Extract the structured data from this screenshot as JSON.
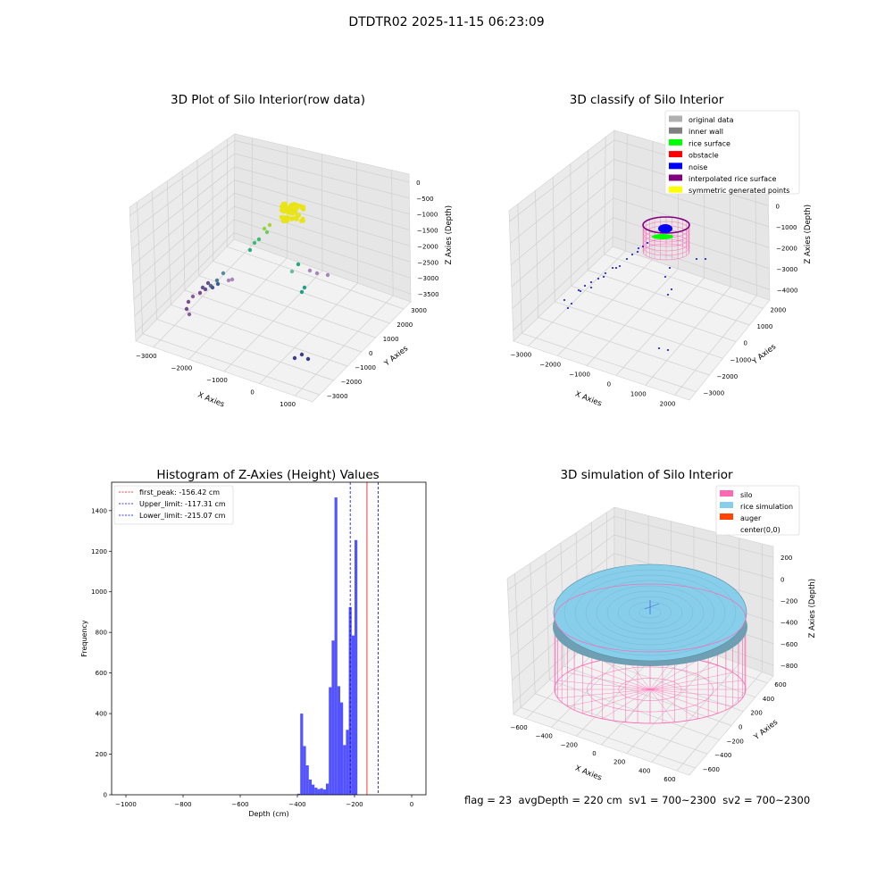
{
  "suptitle": "DTDTR02 2025-11-15 06:23:09",
  "footer": "flag = 23  avgDepth = 220 cm  sv1 = 700~2300  sv2 = 700~2300",
  "colors": {
    "original": "#b0b0b0",
    "inner_wall": "#808080",
    "rice_surface": "#00ff00",
    "obstacle": "#ff0000",
    "noise": "#0000ff",
    "interpolated": "#800080",
    "symmetric": "#ffff00",
    "silo": "#ff69b4",
    "rice_sim": "#87ceeb",
    "auger": "#ff4500",
    "hist_bar": "#4b4bff"
  },
  "chart_data": [
    {
      "type": "scatter",
      "projection": "3d",
      "title": "3D Plot of Silo Interior(row data)",
      "xlabel": "X Axies",
      "ylabel": "Y Axies",
      "zlabel": "Z Axies (Depth)",
      "xticks": [
        "−3000",
        "−2000",
        "−1000",
        "0",
        "1000"
      ],
      "yticks": [
        "3000",
        "2000",
        "1000",
        "0",
        "−1000",
        "−2000",
        "−3000"
      ],
      "zticks": [
        "0",
        "−500",
        "−1000",
        "−1500",
        "−2000",
        "−2500",
        "−3000",
        "−3500"
      ],
      "colormap": "viridis by depth"
    },
    {
      "type": "scatter",
      "projection": "3d",
      "title": "3D classify of Silo Interior",
      "xlabel": "X Axies",
      "ylabel": "Y Axies",
      "zlabel": "Z Axies (Depth)",
      "xticks": [
        "−3000",
        "−2000",
        "−1000",
        "0",
        "1000",
        "2000"
      ],
      "yticks": [
        "2000",
        "1000",
        "0",
        "−1000",
        "−2000",
        "−3000"
      ],
      "zticks": [
        "1000",
        "0",
        "−1000",
        "−2000",
        "−3000",
        "−4000"
      ],
      "legend": [
        "original data",
        "inner wall",
        "rice surface",
        "obstacle",
        "noise",
        "interpolated rice surface",
        "symmetric generated points"
      ],
      "legend_loc": "upper right"
    },
    {
      "type": "bar",
      "title": "Histogram of Z-Axies (Height) Values",
      "xlabel": "Depth (cm)",
      "ylabel": "Frequency",
      "xlim": [
        -1050,
        50
      ],
      "ylim": [
        0,
        1540
      ],
      "xticks": [
        "−1000",
        "−800",
        "−600",
        "−400",
        "−200",
        "0"
      ],
      "yticks": [
        "0",
        "200",
        "400",
        "600",
        "800",
        "1000",
        "1200",
        "1400"
      ],
      "bin_width": 10,
      "bin_edges_start": [
        -400,
        -390,
        -380,
        -370,
        -360,
        -350,
        -340,
        -330,
        -320,
        -310,
        -300,
        -290,
        -280,
        -270,
        -260,
        -250,
        -240,
        -230,
        -220,
        -210,
        -200,
        -190,
        -180,
        -170,
        -160,
        -150,
        -140,
        -130,
        -120,
        -110,
        -100,
        -90,
        -80,
        -70,
        -60,
        -50,
        -40,
        -30,
        -20,
        -10
      ],
      "values": [
        5,
        400,
        240,
        145,
        75,
        50,
        35,
        28,
        32,
        26,
        55,
        530,
        760,
        1465,
        535,
        455,
        245,
        320,
        925,
        785,
        1255
      ],
      "bins_used_start": [
        -400,
        -390,
        -380,
        -370,
        -360,
        -350,
        -340,
        -330,
        -320,
        -310,
        -300,
        -290,
        -280,
        -270,
        -260,
        -250,
        -240,
        -230,
        -220,
        -210,
        -200
      ],
      "lines": [
        {
          "label": "first_peak: -156.42 cm",
          "x": -156.42,
          "color": "#ff0000"
        },
        {
          "label": "Upper_limit: -117.31 cm",
          "x": -117.31,
          "color": "#0000ff"
        },
        {
          "label": "Lower_limit: -215.07 cm",
          "x": -215.07,
          "color": "#0000ff"
        }
      ],
      "legend_loc": "upper left"
    },
    {
      "type": "surface",
      "projection": "3d",
      "title": "3D simulation of Silo Interior",
      "xlabel": "X Axies",
      "ylabel": "Y Axies",
      "zlabel": "Z Axies (Depth)",
      "xticks": [
        "−600",
        "−400",
        "−200",
        "0",
        "200",
        "400",
        "600"
      ],
      "yticks": [
        "600",
        "400",
        "200",
        "0",
        "−200",
        "−400",
        "−600"
      ],
      "zticks": [
        "200",
        "0",
        "−200",
        "−400",
        "−600",
        "−800"
      ],
      "legend": [
        "silo",
        "rice simulation",
        "auger",
        "center(0,0)"
      ],
      "legend_loc": "upper right"
    }
  ]
}
